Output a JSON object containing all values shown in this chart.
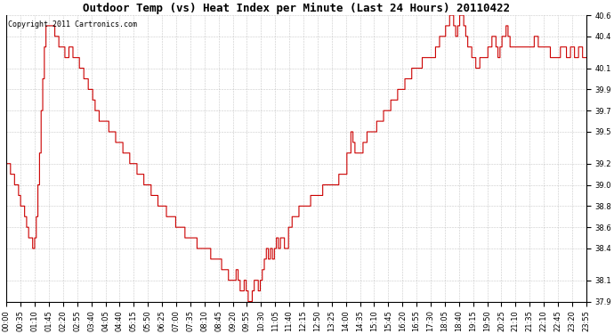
{
  "title": "Outdoor Temp (vs) Heat Index per Minute (Last 24 Hours) 20110422",
  "copyright_text": "Copyright 2011 Cartronics.com",
  "background_color": "#ffffff",
  "line_color": "#cc0000",
  "grid_color": "#bbbbbb",
  "ylim": [
    37.9,
    40.6
  ],
  "yticks": [
    37.9,
    38.1,
    38.4,
    38.6,
    38.8,
    39.0,
    39.2,
    39.5,
    39.7,
    39.9,
    40.1,
    40.4,
    40.6
  ],
  "xtick_labels": [
    "00:00",
    "00:35",
    "01:10",
    "01:45",
    "02:20",
    "02:55",
    "03:40",
    "04:05",
    "04:40",
    "05:15",
    "05:50",
    "06:25",
    "07:00",
    "07:35",
    "08:10",
    "08:45",
    "09:20",
    "09:55",
    "10:30",
    "11:05",
    "11:40",
    "12:15",
    "12:50",
    "13:25",
    "14:00",
    "14:35",
    "15:10",
    "15:45",
    "16:20",
    "16:55",
    "17:30",
    "18:05",
    "18:40",
    "19:15",
    "19:50",
    "20:25",
    "21:10",
    "21:35",
    "22:10",
    "22:45",
    "23:20",
    "23:55"
  ],
  "title_fontsize": 9,
  "copyright_fontsize": 6,
  "tick_fontsize": 6
}
